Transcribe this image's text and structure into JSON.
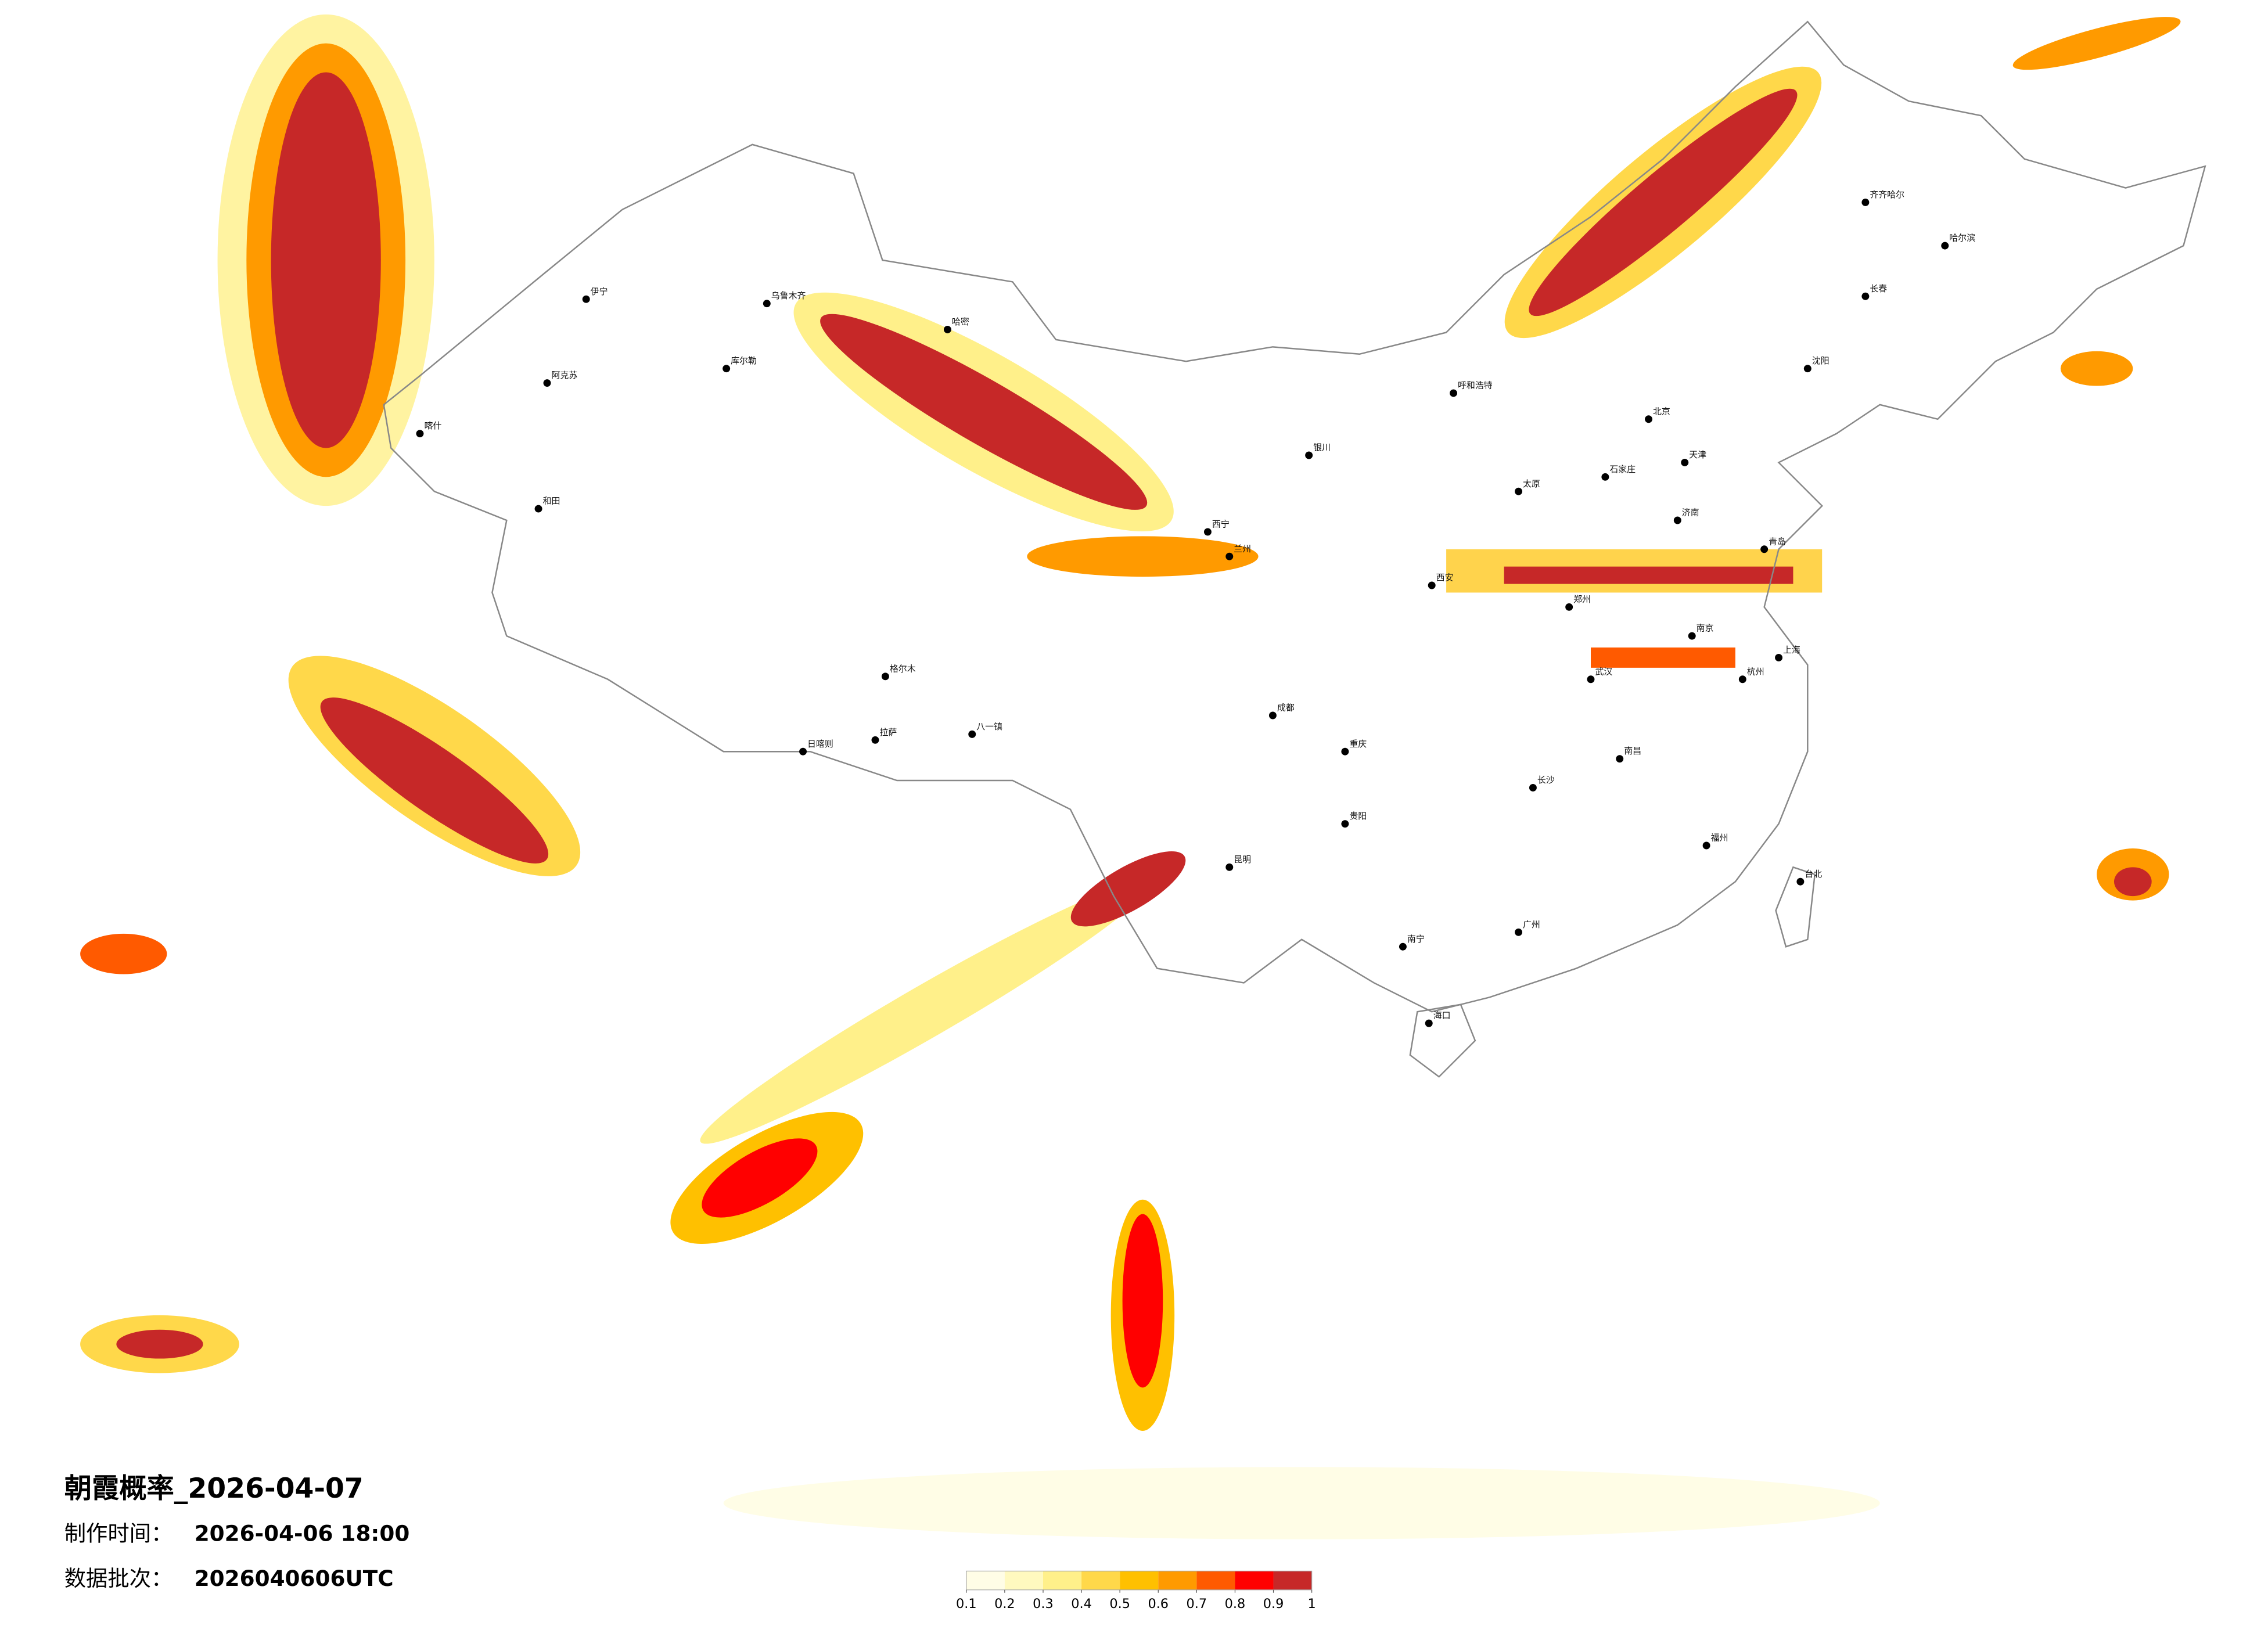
{
  "title": "朝霞概率_2026-04-07",
  "made_time": {
    "label": "制作时间：",
    "value": "2026-04-06 18:00"
  },
  "batch": {
    "label": "数据批次：",
    "value": "2026040606UTC"
  },
  "colorbar": {
    "ticks": [
      0.1,
      0.2,
      0.3,
      0.4,
      0.5,
      0.6,
      0.7,
      0.8,
      0.9,
      1
    ],
    "colors": [
      "#fffde6",
      "#fff9bf",
      "#fff08a",
      "#ffd84a",
      "#ffc000",
      "#ff9a00",
      "#ff5a00",
      "#ff0000",
      "#c62828"
    ]
  },
  "cities": [
    "伊宁",
    "阿克苏",
    "和田",
    "喀什",
    "库尔勒",
    "乌鲁木齐",
    "哈密",
    "格尔木",
    "拉萨",
    "日喀则",
    "八一镇",
    "西宁",
    "兰州",
    "银川",
    "呼和浩特",
    "北京",
    "天津",
    "石家庄",
    "太原",
    "郑州",
    "西安",
    "成都",
    "重庆",
    "昆明",
    "贵阳",
    "南宁",
    "海口",
    "广州",
    "长沙",
    "武汉",
    "南昌",
    "福州",
    "杭州",
    "南京",
    "上海",
    "济南",
    "青岛",
    "沈阳",
    "长春",
    "哈尔滨",
    "齐齐哈尔",
    "台北"
  ]
}
